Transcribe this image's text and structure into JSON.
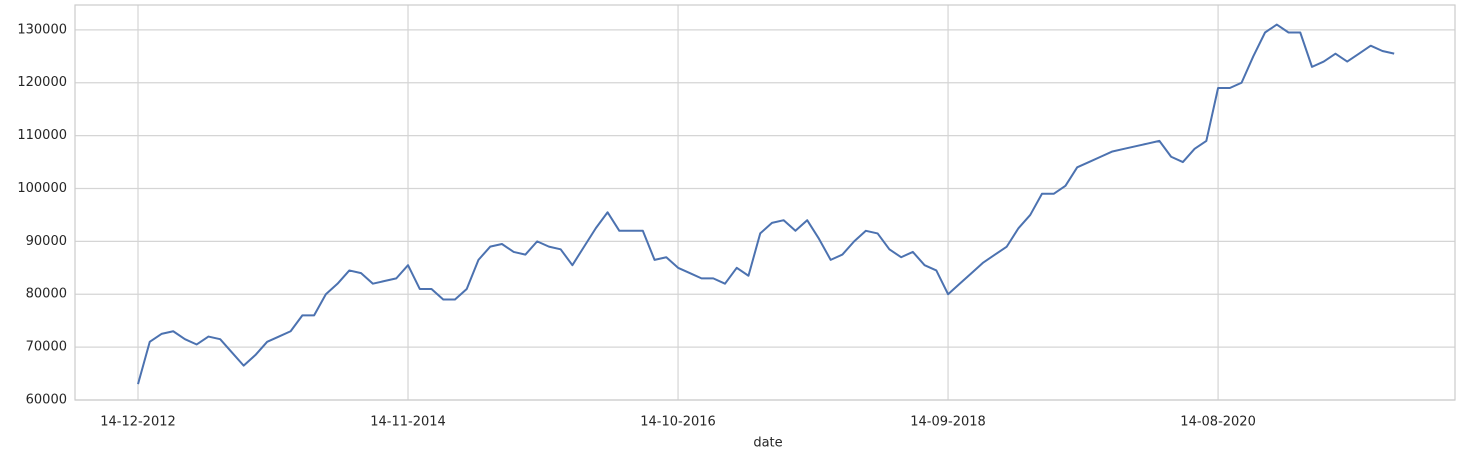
{
  "chart_data": {
    "type": "line",
    "x_label": "date",
    "categories": [
      "14-12-2012",
      null,
      null,
      null,
      null,
      null,
      null,
      null,
      null,
      null,
      null,
      null,
      null,
      null,
      null,
      null,
      null,
      null,
      null,
      null,
      null,
      null,
      null,
      "14-11-2014",
      null,
      null,
      null,
      null,
      null,
      null,
      null,
      null,
      null,
      null,
      null,
      null,
      null,
      null,
      null,
      null,
      null,
      null,
      null,
      null,
      null,
      null,
      "14-10-2016",
      null,
      null,
      null,
      null,
      null,
      null,
      null,
      null,
      null,
      null,
      null,
      null,
      null,
      null,
      null,
      null,
      null,
      null,
      null,
      null,
      null,
      null,
      "14-09-2018",
      null,
      null,
      null,
      null,
      null,
      null,
      null,
      null,
      null,
      null,
      null,
      null,
      null,
      null,
      null,
      null,
      null,
      null,
      null,
      null,
      null,
      null,
      "14-08-2020",
      null,
      null,
      null,
      null,
      null,
      null,
      null,
      null,
      null,
      null,
      null,
      null,
      null,
      null,
      null
    ],
    "values": [
      63000,
      71000,
      72500,
      73000,
      71500,
      70500,
      72000,
      71500,
      69000,
      66500,
      68500,
      71000,
      72000,
      73000,
      76000,
      76000,
      80000,
      82000,
      84500,
      84000,
      82000,
      82500,
      83000,
      85500,
      81000,
      81000,
      79000,
      79000,
      81000,
      86500,
      89000,
      89500,
      88000,
      87500,
      90000,
      89000,
      88500,
      85500,
      89000,
      92500,
      95500,
      92000,
      92000,
      92000,
      86500,
      87000,
      85000,
      84000,
      83000,
      83000,
      82000,
      85000,
      83500,
      91500,
      93500,
      94000,
      92000,
      94000,
      90500,
      86500,
      87500,
      90000,
      92000,
      91500,
      88500,
      87000,
      88000,
      85500,
      84500,
      80000,
      82000,
      84000,
      86000,
      87500,
      89000,
      92500,
      95000,
      99000,
      99000,
      100500,
      104000,
      105000,
      106000,
      107000,
      107500,
      108000,
      108500,
      109000,
      106000,
      105000,
      107500,
      109000,
      119000,
      119000,
      120000,
      125000,
      129500,
      131000,
      129500,
      129500,
      123000,
      124000,
      125500,
      124000,
      125500,
      127000,
      126000,
      125500
    ],
    "color": "#4c72b0",
    "ylim": [
      60000,
      134700
    ],
    "yticks": [
      60000,
      70000,
      80000,
      90000,
      100000,
      110000,
      120000,
      130000
    ],
    "grid": true
  }
}
